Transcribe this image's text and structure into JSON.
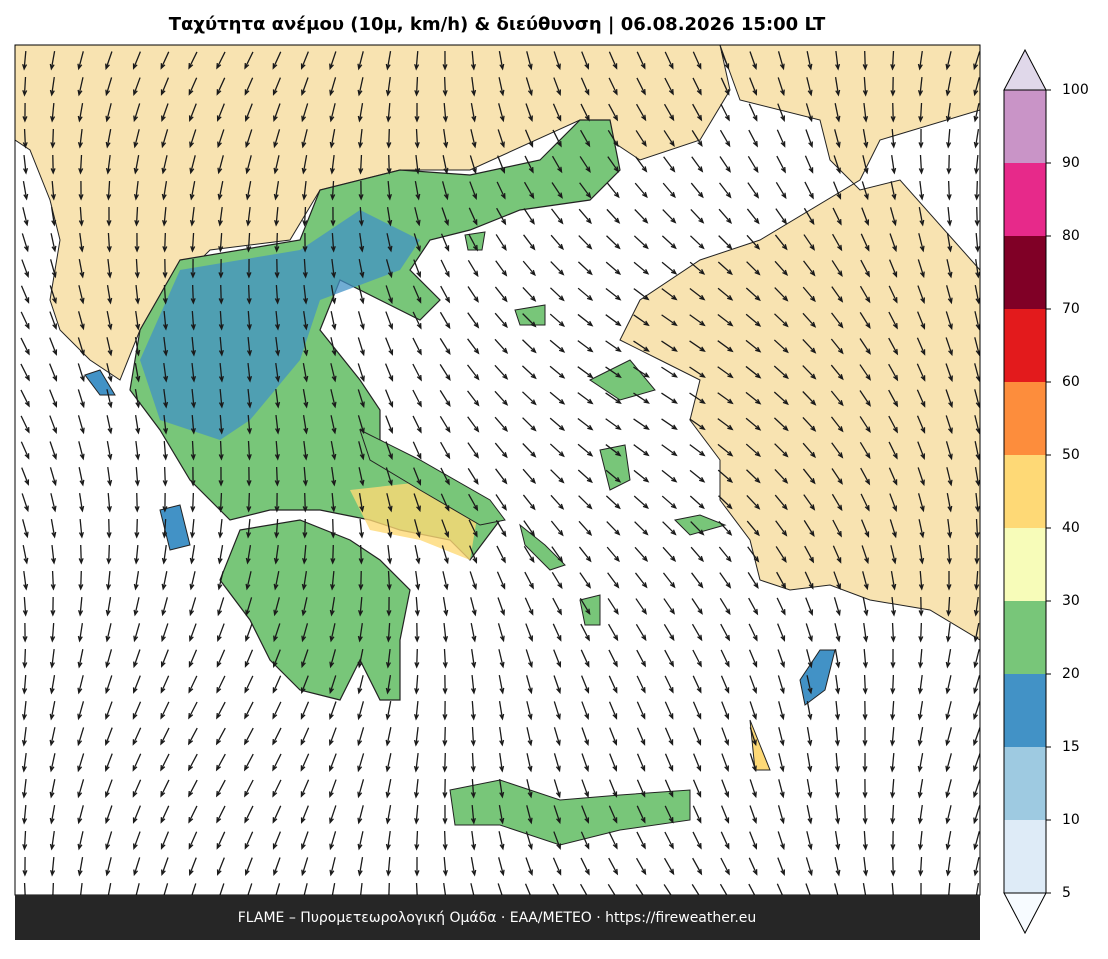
{
  "title": "Ταχύτητα ανέμου (10μ, km/h) & διεύθυνση  |  06.08.2026 15:00 LT",
  "footer": "FLAME – Πυρομετεωρολογική Ομάδα · ΕΑΑ/METEO · https://fireweather.eu",
  "colorbar": {
    "ticks": [
      5,
      10,
      15,
      20,
      30,
      40,
      50,
      60,
      70,
      80,
      90,
      100
    ],
    "colors": [
      "#deebf7",
      "#9ecae1",
      "#4292c6",
      "#78c679",
      "#f7fcb9",
      "#fed976",
      "#fd8d3c",
      "#e31a1c",
      "#800026",
      "#e7298a",
      "#c994c7"
    ],
    "under_color": "#f7fbff",
    "over_color": "#e0d8ea"
  }
}
